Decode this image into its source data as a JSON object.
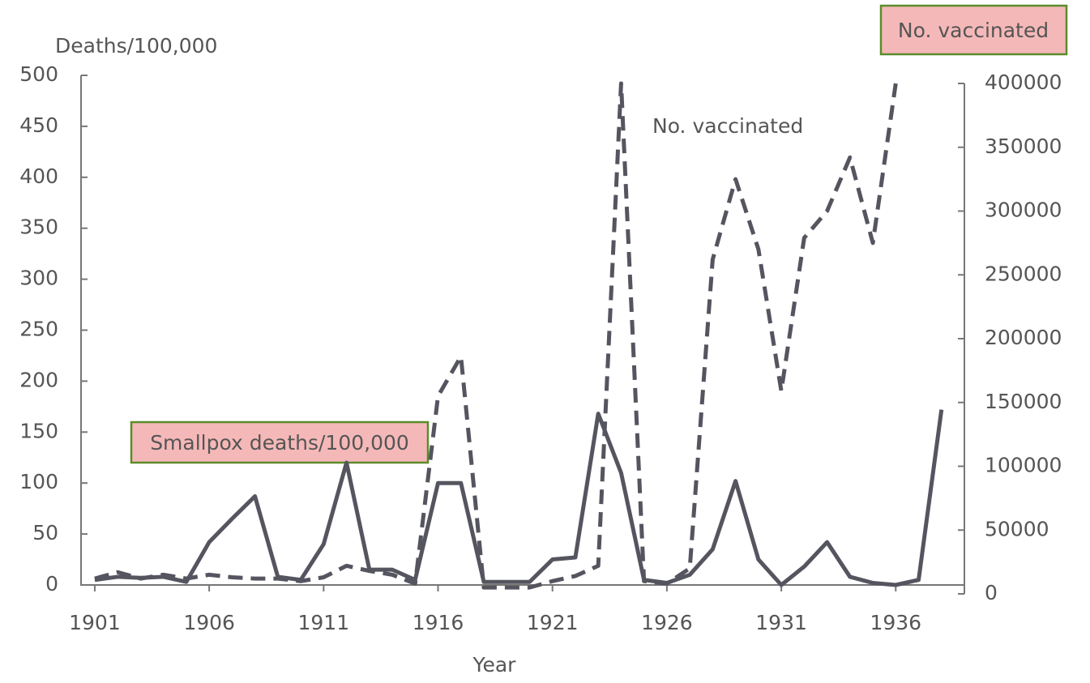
{
  "chart_data": {
    "type": "line",
    "y_label": "Deaths/100,000",
    "x_label": "Year",
    "annotation": "No. vaccinated",
    "x": [
      1901,
      1902,
      1903,
      1904,
      1905,
      1906,
      1907,
      1908,
      1909,
      1910,
      1911,
      1912,
      1913,
      1914,
      1915,
      1916,
      1917,
      1918,
      1919,
      1920,
      1921,
      1922,
      1923,
      1924,
      1925,
      1926,
      1927,
      1928,
      1929,
      1930,
      1931,
      1932,
      1933,
      1934,
      1935,
      1936,
      1937,
      1938
    ],
    "xlim": [
      1900.4,
      1939
    ],
    "xticks": [
      1901,
      1906,
      1911,
      1916,
      1921,
      1926,
      1931,
      1936
    ],
    "ylim": [
      0,
      500
    ],
    "yticks": [
      0,
      50,
      100,
      150,
      200,
      250,
      300,
      350,
      400,
      450,
      500
    ],
    "y2lim": [
      0,
      400000
    ],
    "y2ticks": [
      0,
      50000,
      100000,
      150000,
      200000,
      250000,
      300000,
      350000,
      400000
    ],
    "series": [
      {
        "name": "Smallpox deaths/100,000",
        "color": "#555560",
        "dashed": false,
        "values": [
          5,
          8,
          7,
          8,
          3,
          42,
          65,
          87,
          8,
          5,
          40,
          120,
          15,
          15,
          5,
          100,
          100,
          3,
          3,
          3,
          25,
          27,
          168,
          110,
          5,
          2,
          10,
          35,
          102,
          25,
          0,
          18,
          42,
          8,
          2,
          0,
          5,
          172
        ]
      },
      {
        "name": "No. vaccinated",
        "color": "#555560",
        "dashed": true,
        "axis": "y2",
        "values": [
          12000,
          17000,
          12000,
          15000,
          12000,
          15000,
          13000,
          12000,
          12000,
          10000,
          13000,
          22000,
          18000,
          15000,
          8000,
          155000,
          186000,
          5000,
          5000,
          5000,
          10000,
          14000,
          22000,
          400000,
          10000,
          8000,
          20000,
          262000,
          325000,
          270000,
          159000,
          279000,
          300000,
          342000,
          275000,
          400000,
          null,
          null
        ]
      }
    ]
  }
}
